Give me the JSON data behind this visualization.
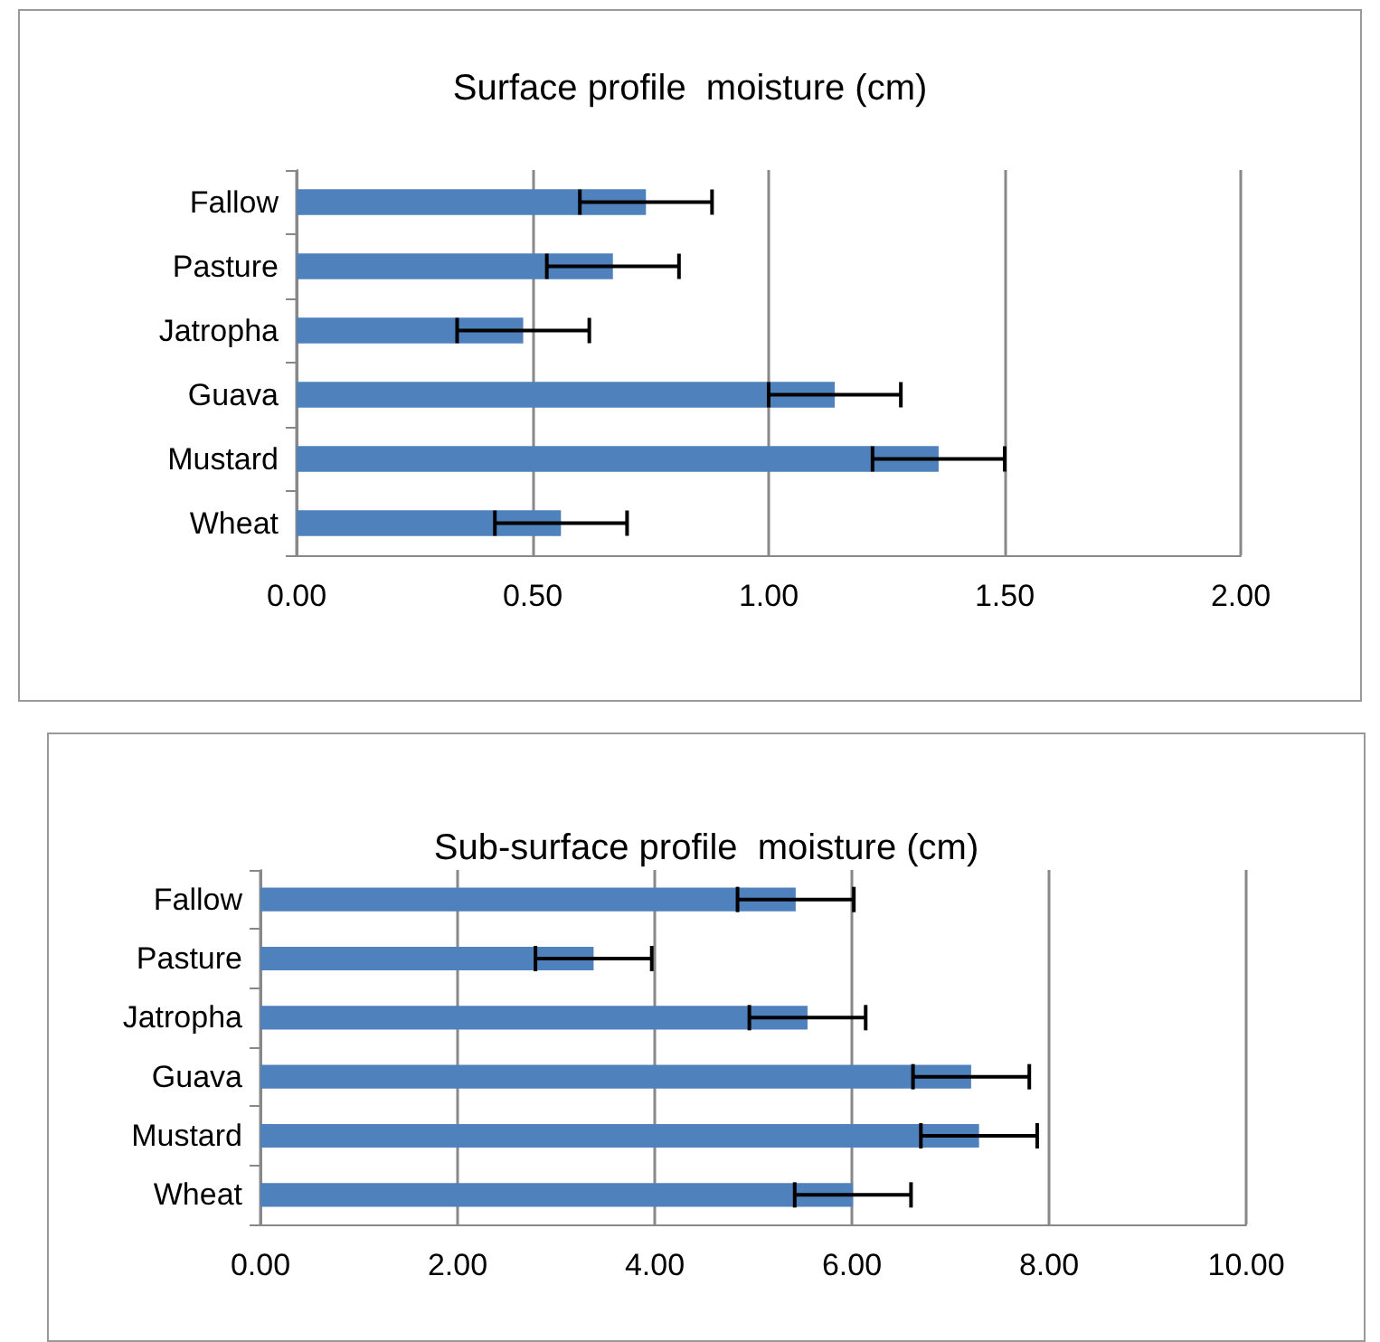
{
  "chart_data": [
    {
      "type": "bar",
      "orientation": "horizontal",
      "title": "Surface profile  moisture (cm)",
      "categories": [
        "Fallow",
        "Pasture",
        "Jatropha",
        "Guava",
        "Mustard",
        "Wheat"
      ],
      "values": [
        0.74,
        0.67,
        0.48,
        1.14,
        1.36,
        0.56
      ],
      "errors": [
        0.14,
        0.14,
        0.14,
        0.14,
        0.14,
        0.14
      ],
      "color": "#4f81bd",
      "xlim": [
        0,
        2
      ],
      "xticks": [
        {
          "value": 0,
          "label": "0.00"
        },
        {
          "value": 0.5,
          "label": "0.50"
        },
        {
          "value": 1,
          "label": "1.00"
        },
        {
          "value": 1.5,
          "label": "1.50"
        },
        {
          "value": 2,
          "label": "2.00"
        }
      ],
      "grid": "x"
    },
    {
      "type": "bar",
      "orientation": "horizontal",
      "title": "Sub-surface profile  moisture (cm)",
      "categories": [
        "Fallow",
        "Pasture",
        "Jatropha",
        "Guava",
        "Mustard",
        "Wheat"
      ],
      "values": [
        5.43,
        3.38,
        5.55,
        7.21,
        7.29,
        6.01
      ],
      "errors": [
        0.59,
        0.59,
        0.59,
        0.59,
        0.59,
        0.59
      ],
      "color": "#4f81bd",
      "xlim": [
        0,
        10
      ],
      "xticks": [
        {
          "value": 0,
          "label": "0.00"
        },
        {
          "value": 2,
          "label": "2.00"
        },
        {
          "value": 4,
          "label": "4.00"
        },
        {
          "value": 6,
          "label": "6.00"
        },
        {
          "value": 8,
          "label": "8.00"
        },
        {
          "value": 10,
          "label": "10.00"
        }
      ],
      "grid": "x"
    }
  ]
}
